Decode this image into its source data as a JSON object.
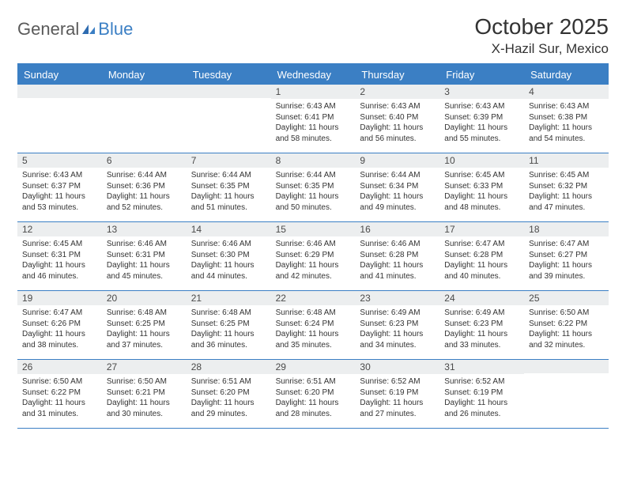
{
  "brand": {
    "text1": "General",
    "text2": "Blue"
  },
  "title": "October 2025",
  "location": "X-Hazil Sur, Mexico",
  "colors": {
    "accent": "#3b7fc4",
    "header_bg": "#3b7fc4",
    "header_text": "#ffffff",
    "daynum_bg": "#eceeef",
    "text": "#333333",
    "logo_grey": "#5a5a5a"
  },
  "day_names": [
    "Sunday",
    "Monday",
    "Tuesday",
    "Wednesday",
    "Thursday",
    "Friday",
    "Saturday"
  ],
  "weeks": [
    [
      {
        "blank": true
      },
      {
        "blank": true
      },
      {
        "blank": true
      },
      {
        "day": 1,
        "sunrise": "6:43 AM",
        "sunset": "6:41 PM",
        "daylight": "11 hours and 58 minutes."
      },
      {
        "day": 2,
        "sunrise": "6:43 AM",
        "sunset": "6:40 PM",
        "daylight": "11 hours and 56 minutes."
      },
      {
        "day": 3,
        "sunrise": "6:43 AM",
        "sunset": "6:39 PM",
        "daylight": "11 hours and 55 minutes."
      },
      {
        "day": 4,
        "sunrise": "6:43 AM",
        "sunset": "6:38 PM",
        "daylight": "11 hours and 54 minutes."
      }
    ],
    [
      {
        "day": 5,
        "sunrise": "6:43 AM",
        "sunset": "6:37 PM",
        "daylight": "11 hours and 53 minutes."
      },
      {
        "day": 6,
        "sunrise": "6:44 AM",
        "sunset": "6:36 PM",
        "daylight": "11 hours and 52 minutes."
      },
      {
        "day": 7,
        "sunrise": "6:44 AM",
        "sunset": "6:35 PM",
        "daylight": "11 hours and 51 minutes."
      },
      {
        "day": 8,
        "sunrise": "6:44 AM",
        "sunset": "6:35 PM",
        "daylight": "11 hours and 50 minutes."
      },
      {
        "day": 9,
        "sunrise": "6:44 AM",
        "sunset": "6:34 PM",
        "daylight": "11 hours and 49 minutes."
      },
      {
        "day": 10,
        "sunrise": "6:45 AM",
        "sunset": "6:33 PM",
        "daylight": "11 hours and 48 minutes."
      },
      {
        "day": 11,
        "sunrise": "6:45 AM",
        "sunset": "6:32 PM",
        "daylight": "11 hours and 47 minutes."
      }
    ],
    [
      {
        "day": 12,
        "sunrise": "6:45 AM",
        "sunset": "6:31 PM",
        "daylight": "11 hours and 46 minutes."
      },
      {
        "day": 13,
        "sunrise": "6:46 AM",
        "sunset": "6:31 PM",
        "daylight": "11 hours and 45 minutes."
      },
      {
        "day": 14,
        "sunrise": "6:46 AM",
        "sunset": "6:30 PM",
        "daylight": "11 hours and 44 minutes."
      },
      {
        "day": 15,
        "sunrise": "6:46 AM",
        "sunset": "6:29 PM",
        "daylight": "11 hours and 42 minutes."
      },
      {
        "day": 16,
        "sunrise": "6:46 AM",
        "sunset": "6:28 PM",
        "daylight": "11 hours and 41 minutes."
      },
      {
        "day": 17,
        "sunrise": "6:47 AM",
        "sunset": "6:28 PM",
        "daylight": "11 hours and 40 minutes."
      },
      {
        "day": 18,
        "sunrise": "6:47 AM",
        "sunset": "6:27 PM",
        "daylight": "11 hours and 39 minutes."
      }
    ],
    [
      {
        "day": 19,
        "sunrise": "6:47 AM",
        "sunset": "6:26 PM",
        "daylight": "11 hours and 38 minutes."
      },
      {
        "day": 20,
        "sunrise": "6:48 AM",
        "sunset": "6:25 PM",
        "daylight": "11 hours and 37 minutes."
      },
      {
        "day": 21,
        "sunrise": "6:48 AM",
        "sunset": "6:25 PM",
        "daylight": "11 hours and 36 minutes."
      },
      {
        "day": 22,
        "sunrise": "6:48 AM",
        "sunset": "6:24 PM",
        "daylight": "11 hours and 35 minutes."
      },
      {
        "day": 23,
        "sunrise": "6:49 AM",
        "sunset": "6:23 PM",
        "daylight": "11 hours and 34 minutes."
      },
      {
        "day": 24,
        "sunrise": "6:49 AM",
        "sunset": "6:23 PM",
        "daylight": "11 hours and 33 minutes."
      },
      {
        "day": 25,
        "sunrise": "6:50 AM",
        "sunset": "6:22 PM",
        "daylight": "11 hours and 32 minutes."
      }
    ],
    [
      {
        "day": 26,
        "sunrise": "6:50 AM",
        "sunset": "6:22 PM",
        "daylight": "11 hours and 31 minutes."
      },
      {
        "day": 27,
        "sunrise": "6:50 AM",
        "sunset": "6:21 PM",
        "daylight": "11 hours and 30 minutes."
      },
      {
        "day": 28,
        "sunrise": "6:51 AM",
        "sunset": "6:20 PM",
        "daylight": "11 hours and 29 minutes."
      },
      {
        "day": 29,
        "sunrise": "6:51 AM",
        "sunset": "6:20 PM",
        "daylight": "11 hours and 28 minutes."
      },
      {
        "day": 30,
        "sunrise": "6:52 AM",
        "sunset": "6:19 PM",
        "daylight": "11 hours and 27 minutes."
      },
      {
        "day": 31,
        "sunrise": "6:52 AM",
        "sunset": "6:19 PM",
        "daylight": "11 hours and 26 minutes."
      },
      {
        "blank": true
      }
    ]
  ],
  "labels": {
    "sunrise": "Sunrise:",
    "sunset": "Sunset:",
    "daylight": "Daylight:"
  }
}
